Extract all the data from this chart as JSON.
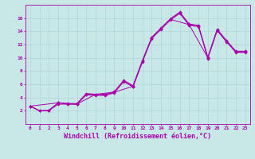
{
  "xlabel": "Windchill (Refroidissement éolien,°C)",
  "background_color": "#c8e8e8",
  "grid_color": "#b0d4d4",
  "line_color": "#aa00aa",
  "line1_x": [
    0,
    1,
    2,
    3,
    4,
    5,
    6,
    7,
    8,
    9,
    10,
    11,
    12,
    13,
    14,
    15,
    16,
    17,
    18,
    19,
    20,
    21,
    22,
    23
  ],
  "line1_y": [
    2.7,
    2.0,
    2.0,
    3.2,
    3.0,
    3.0,
    4.5,
    4.5,
    4.4,
    4.8,
    6.5,
    5.7,
    9.5,
    13.0,
    14.4,
    15.8,
    16.8,
    15.0,
    14.8,
    10.0,
    14.2,
    12.5,
    10.9,
    10.9
  ],
  "line2_x": [
    0,
    1,
    2,
    3,
    4,
    5,
    6,
    7,
    8,
    9,
    10,
    11,
    12,
    13,
    14,
    15,
    16,
    17,
    18,
    19,
    20,
    21,
    22,
    23
  ],
  "line2_y": [
    2.7,
    2.0,
    2.1,
    3.2,
    3.1,
    3.1,
    4.6,
    4.5,
    4.5,
    4.9,
    6.6,
    5.8,
    9.6,
    13.1,
    14.5,
    15.9,
    16.9,
    15.1,
    14.9,
    10.1,
    14.3,
    12.6,
    11.0,
    11.0
  ],
  "line3_x": [
    0,
    1,
    2,
    3,
    4,
    5,
    6,
    7,
    8,
    9,
    10,
    11,
    12,
    13,
    14,
    15,
    16,
    17,
    18,
    19,
    20,
    21,
    22,
    23
  ],
  "line3_y": [
    2.7,
    2.0,
    2.0,
    3.0,
    3.0,
    3.0,
    4.4,
    4.3,
    4.3,
    4.7,
    6.4,
    5.6,
    9.4,
    12.9,
    14.3,
    15.7,
    16.7,
    14.9,
    14.7,
    9.9,
    14.1,
    12.4,
    10.8,
    10.8
  ],
  "line4_x": [
    0,
    3,
    5,
    7,
    9,
    11,
    13,
    15,
    17,
    19,
    20,
    21,
    22,
    23
  ],
  "line4_y": [
    2.7,
    3.2,
    3.0,
    4.5,
    4.8,
    5.7,
    13.0,
    15.8,
    15.0,
    10.0,
    14.2,
    12.5,
    10.9,
    10.9
  ],
  "xlim_min": -0.5,
  "xlim_max": 23.5,
  "ylim_min": 0,
  "ylim_max": 18,
  "xticks": [
    0,
    1,
    2,
    3,
    4,
    5,
    6,
    7,
    8,
    9,
    10,
    11,
    12,
    13,
    14,
    15,
    16,
    17,
    18,
    19,
    20,
    21,
    22,
    23
  ],
  "yticks": [
    2,
    4,
    6,
    8,
    10,
    12,
    14,
    16
  ],
  "tick_fontsize": 4.5,
  "label_fontsize": 6.0
}
